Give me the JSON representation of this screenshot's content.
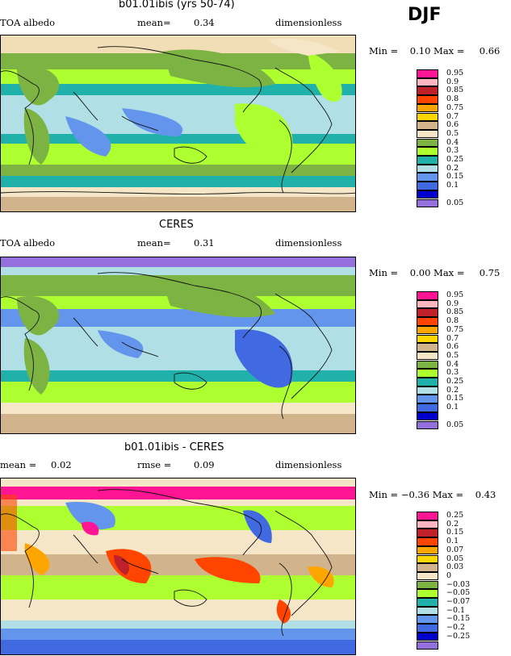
{
  "season": "DJF",
  "colors": {
    "map_bg": "#f2deb6",
    "land_outline": "#111111"
  },
  "panels": [
    {
      "title": "b01.01ibis (yrs 50-74)",
      "left_label": "TOA albedo",
      "mid_label": "mean=",
      "mid_value": "0.34",
      "right_label": "dimensionless",
      "min_label": "Min =",
      "min_value": "0.10",
      "max_label": "Max =",
      "max_value": "0.66",
      "legend": [
        {
          "label": "0.95",
          "color": "#ff1493"
        },
        {
          "label": "0.9",
          "color": "#ffb6c1"
        },
        {
          "label": "0.85",
          "color": "#c0202a"
        },
        {
          "label": "0.8",
          "color": "#ff4500"
        },
        {
          "label": "0.75",
          "color": "#ffa500"
        },
        {
          "label": "0.7",
          "color": "#ffd700"
        },
        {
          "label": "0.6",
          "color": "#d2b48c"
        },
        {
          "label": "0.5",
          "color": "#f5e6c8"
        },
        {
          "label": "0.4",
          "color": "#7cb342"
        },
        {
          "label": "0.3",
          "color": "#adff2f"
        },
        {
          "label": "0.25",
          "color": "#20b2aa"
        },
        {
          "label": "0.2",
          "color": "#b0e0e6"
        },
        {
          "label": "0.15",
          "color": "#6495ed"
        },
        {
          "label": "0.1",
          "color": "#4169e1"
        },
        {
          "label": "",
          "color": "#0000cd"
        },
        {
          "label": "0.05",
          "color": "#9370db"
        }
      ]
    },
    {
      "title": "CERES",
      "left_label": "TOA albedo",
      "mid_label": "mean=",
      "mid_value": "0.31",
      "right_label": "dimensionless",
      "min_label": "Min =",
      "min_value": "0.00",
      "max_label": "Max =",
      "max_value": "0.75",
      "legend": [
        {
          "label": "0.95",
          "color": "#ff1493"
        },
        {
          "label": "0.9",
          "color": "#ffb6c1"
        },
        {
          "label": "0.85",
          "color": "#c0202a"
        },
        {
          "label": "0.8",
          "color": "#ff4500"
        },
        {
          "label": "0.75",
          "color": "#ffa500"
        },
        {
          "label": "0.7",
          "color": "#ffd700"
        },
        {
          "label": "0.6",
          "color": "#d2b48c"
        },
        {
          "label": "0.5",
          "color": "#f5e6c8"
        },
        {
          "label": "0.4",
          "color": "#7cb342"
        },
        {
          "label": "0.3",
          "color": "#adff2f"
        },
        {
          "label": "0.25",
          "color": "#20b2aa"
        },
        {
          "label": "0.2",
          "color": "#b0e0e6"
        },
        {
          "label": "0.15",
          "color": "#6495ed"
        },
        {
          "label": "0.1",
          "color": "#4169e1"
        },
        {
          "label": "",
          "color": "#0000cd"
        },
        {
          "label": "0.05",
          "color": "#9370db"
        }
      ]
    },
    {
      "title": "b01.01ibis - CERES",
      "left_label": "mean =",
      "left_value": "0.02",
      "mid_label": "rmse =",
      "mid_value": "0.09",
      "right_label": "dimensionless",
      "min_label": "Min =",
      "min_value": "−0.36",
      "max_label": "Max =",
      "max_value": "0.43",
      "legend": [
        {
          "label": "0.25",
          "color": "#ff1493"
        },
        {
          "label": "0.2",
          "color": "#ffb6c1"
        },
        {
          "label": "0.15",
          "color": "#c0202a"
        },
        {
          "label": "0.1",
          "color": "#ff4500"
        },
        {
          "label": "0.07",
          "color": "#ffa500"
        },
        {
          "label": "0.05",
          "color": "#ffd700"
        },
        {
          "label": "0.03",
          "color": "#d2b48c"
        },
        {
          "label": "0",
          "color": "#f5e6c8"
        },
        {
          "label": "−0.03",
          "color": "#7cb342"
        },
        {
          "label": "−0.05",
          "color": "#adff2f"
        },
        {
          "label": "−0.07",
          "color": "#20b2aa"
        },
        {
          "label": "−0.1",
          "color": "#b0e0e6"
        },
        {
          "label": "−0.15",
          "color": "#6495ed"
        },
        {
          "label": "−0.2",
          "color": "#4169e1"
        },
        {
          "label": "−0.25",
          "color": "#0000cd"
        },
        {
          "label": "",
          "color": "#9370db"
        }
      ]
    }
  ]
}
